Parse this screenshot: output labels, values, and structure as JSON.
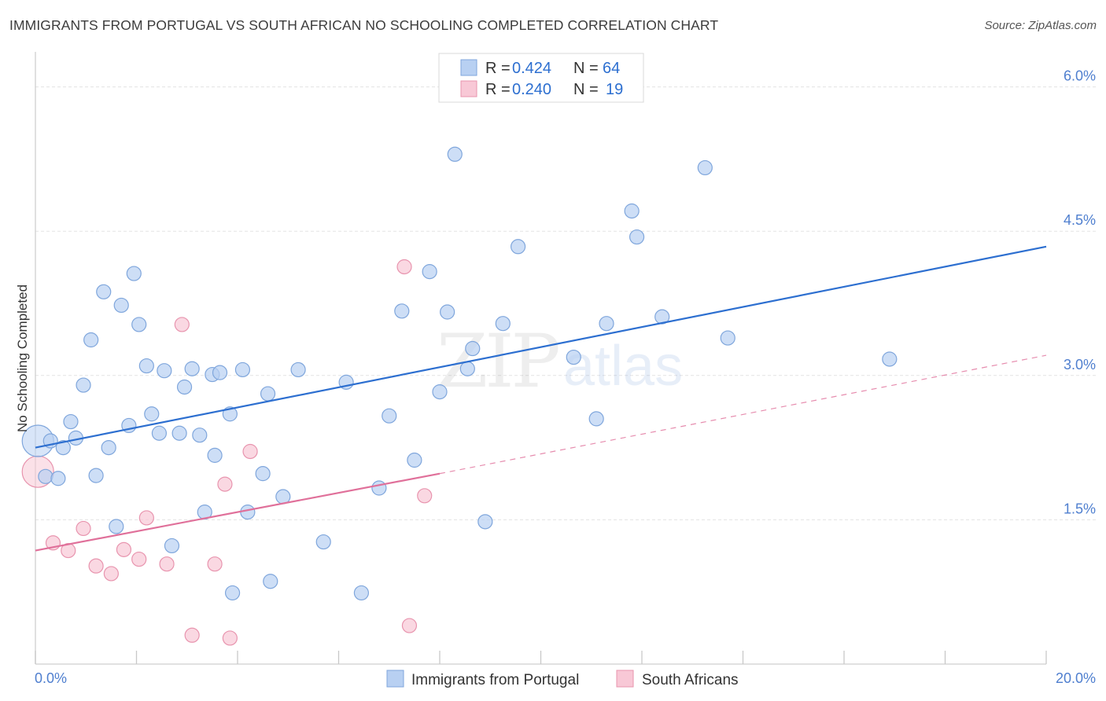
{
  "header": {
    "title": "IMMIGRANTS FROM PORTUGAL VS SOUTH AFRICAN NO SCHOOLING COMPLETED CORRELATION CHART",
    "source": "Source: ZipAtlas.com"
  },
  "watermark": {
    "zip": "ZIP",
    "atlas": "atlas"
  },
  "colors": {
    "blue_fill": "#b8d0f2",
    "blue_stroke": "#7fa6dc",
    "blue_line": "#2d6fd0",
    "pink_fill": "#f8c8d6",
    "pink_stroke": "#e894ae",
    "pink_line": "#e0709a",
    "tick_text": "#4f7fcf",
    "grid": "#e3e3e3"
  },
  "legend": {
    "rows": [
      {
        "r_label": "R =",
        "r_value": "0.424",
        "n_label": "N =",
        "n_value": "64"
      },
      {
        "r_label": "R =",
        "r_value": "0.240",
        "n_label": "N =",
        "n_value": "19"
      }
    ]
  },
  "chart_data": {
    "type": "scatter",
    "title": "IMMIGRANTS FROM PORTUGAL VS SOUTH AFRICAN NO SCHOOLING COMPLETED CORRELATION CHART",
    "xlabel": "",
    "ylabel": "No Schooling Completed",
    "xlim": [
      0,
      20
    ],
    "ylim": [
      0,
      6.25
    ],
    "x_tick_labels": [
      {
        "value": 0,
        "label": "0.0%"
      },
      {
        "value": 20,
        "label": "20.0%"
      }
    ],
    "y_ticks": [
      {
        "value": 1.5,
        "label": "1.5%"
      },
      {
        "value": 3.0,
        "label": "3.0%"
      },
      {
        "value": 4.5,
        "label": "4.5%"
      },
      {
        "value": 6.0,
        "label": "6.0%"
      }
    ],
    "x_minor_ticks": [
      0,
      2,
      4,
      6,
      8,
      10,
      12,
      14,
      16,
      18,
      20
    ],
    "grid": true,
    "legend_position": "top-center",
    "series": [
      {
        "name": "Immigrants from Portugal",
        "color": "blue",
        "r": 0.424,
        "n": 64,
        "trend": {
          "x": [
            0,
            20
          ],
          "y": [
            2.25,
            4.34
          ],
          "dashed_to": null
        },
        "points": [
          {
            "x": 0.05,
            "y": 2.32,
            "big": true
          },
          {
            "x": 0.2,
            "y": 1.95
          },
          {
            "x": 0.3,
            "y": 2.32
          },
          {
            "x": 0.45,
            "y": 1.93
          },
          {
            "x": 0.55,
            "y": 2.25
          },
          {
            "x": 0.7,
            "y": 2.52
          },
          {
            "x": 0.8,
            "y": 2.35
          },
          {
            "x": 0.95,
            "y": 2.9
          },
          {
            "x": 1.1,
            "y": 3.37
          },
          {
            "x": 1.2,
            "y": 1.96
          },
          {
            "x": 1.35,
            "y": 3.87
          },
          {
            "x": 1.45,
            "y": 2.25
          },
          {
            "x": 1.6,
            "y": 1.43
          },
          {
            "x": 1.7,
            "y": 3.73
          },
          {
            "x": 1.85,
            "y": 2.48
          },
          {
            "x": 1.95,
            "y": 4.06
          },
          {
            "x": 2.05,
            "y": 3.53
          },
          {
            "x": 2.2,
            "y": 3.1
          },
          {
            "x": 2.3,
            "y": 2.6
          },
          {
            "x": 2.45,
            "y": 2.4
          },
          {
            "x": 2.55,
            "y": 3.05
          },
          {
            "x": 2.7,
            "y": 1.23
          },
          {
            "x": 2.85,
            "y": 2.4
          },
          {
            "x": 2.95,
            "y": 2.88
          },
          {
            "x": 3.1,
            "y": 3.07
          },
          {
            "x": 3.25,
            "y": 2.38
          },
          {
            "x": 3.35,
            "y": 1.58
          },
          {
            "x": 3.5,
            "y": 3.01
          },
          {
            "x": 3.55,
            "y": 2.17
          },
          {
            "x": 3.65,
            "y": 3.03
          },
          {
            "x": 3.85,
            "y": 2.6
          },
          {
            "x": 3.9,
            "y": 0.74
          },
          {
            "x": 4.1,
            "y": 3.06
          },
          {
            "x": 4.2,
            "y": 1.58
          },
          {
            "x": 4.5,
            "y": 1.98
          },
          {
            "x": 4.6,
            "y": 2.81
          },
          {
            "x": 4.65,
            "y": 0.86
          },
          {
            "x": 4.9,
            "y": 1.74
          },
          {
            "x": 5.2,
            "y": 3.06
          },
          {
            "x": 5.7,
            "y": 1.27
          },
          {
            "x": 6.15,
            "y": 2.93
          },
          {
            "x": 6.45,
            "y": 0.74
          },
          {
            "x": 6.8,
            "y": 1.83
          },
          {
            "x": 7.0,
            "y": 2.58
          },
          {
            "x": 7.25,
            "y": 3.67
          },
          {
            "x": 7.5,
            "y": 2.12
          },
          {
            "x": 7.8,
            "y": 4.08
          },
          {
            "x": 8.0,
            "y": 2.83
          },
          {
            "x": 8.15,
            "y": 3.66
          },
          {
            "x": 8.3,
            "y": 5.3
          },
          {
            "x": 8.55,
            "y": 3.07
          },
          {
            "x": 8.65,
            "y": 3.28
          },
          {
            "x": 8.9,
            "y": 1.48
          },
          {
            "x": 9.25,
            "y": 3.54
          },
          {
            "x": 9.55,
            "y": 4.34
          },
          {
            "x": 10.65,
            "y": 3.19
          },
          {
            "x": 11.1,
            "y": 2.55
          },
          {
            "x": 11.3,
            "y": 3.54
          },
          {
            "x": 11.8,
            "y": 4.71
          },
          {
            "x": 11.9,
            "y": 4.44
          },
          {
            "x": 12.4,
            "y": 3.61
          },
          {
            "x": 13.25,
            "y": 5.16
          },
          {
            "x": 13.7,
            "y": 3.39
          },
          {
            "x": 16.9,
            "y": 3.17
          }
        ]
      },
      {
        "name": "South Africans",
        "color": "pink",
        "r": 0.24,
        "n": 19,
        "trend": {
          "x": [
            0,
            8.0
          ],
          "y": [
            1.18,
            1.98
          ],
          "dashed_to": {
            "x": 20,
            "y": 3.21
          }
        },
        "points": [
          {
            "x": 0.05,
            "y": 2.0,
            "big": true
          },
          {
            "x": 0.35,
            "y": 1.26
          },
          {
            "x": 0.65,
            "y": 1.18
          },
          {
            "x": 0.95,
            "y": 1.41
          },
          {
            "x": 1.2,
            "y": 1.02
          },
          {
            "x": 1.5,
            "y": 0.94
          },
          {
            "x": 1.75,
            "y": 1.19
          },
          {
            "x": 2.05,
            "y": 1.09
          },
          {
            "x": 2.2,
            "y": 1.52
          },
          {
            "x": 2.6,
            "y": 1.04
          },
          {
            "x": 2.9,
            "y": 3.53
          },
          {
            "x": 3.1,
            "y": 0.3
          },
          {
            "x": 3.55,
            "y": 1.04
          },
          {
            "x": 3.75,
            "y": 1.87
          },
          {
            "x": 3.85,
            "y": 0.27
          },
          {
            "x": 4.25,
            "y": 2.21
          },
          {
            "x": 7.3,
            "y": 4.13
          },
          {
            "x": 7.4,
            "y": 0.4
          },
          {
            "x": 7.7,
            "y": 1.75
          }
        ]
      }
    ]
  }
}
